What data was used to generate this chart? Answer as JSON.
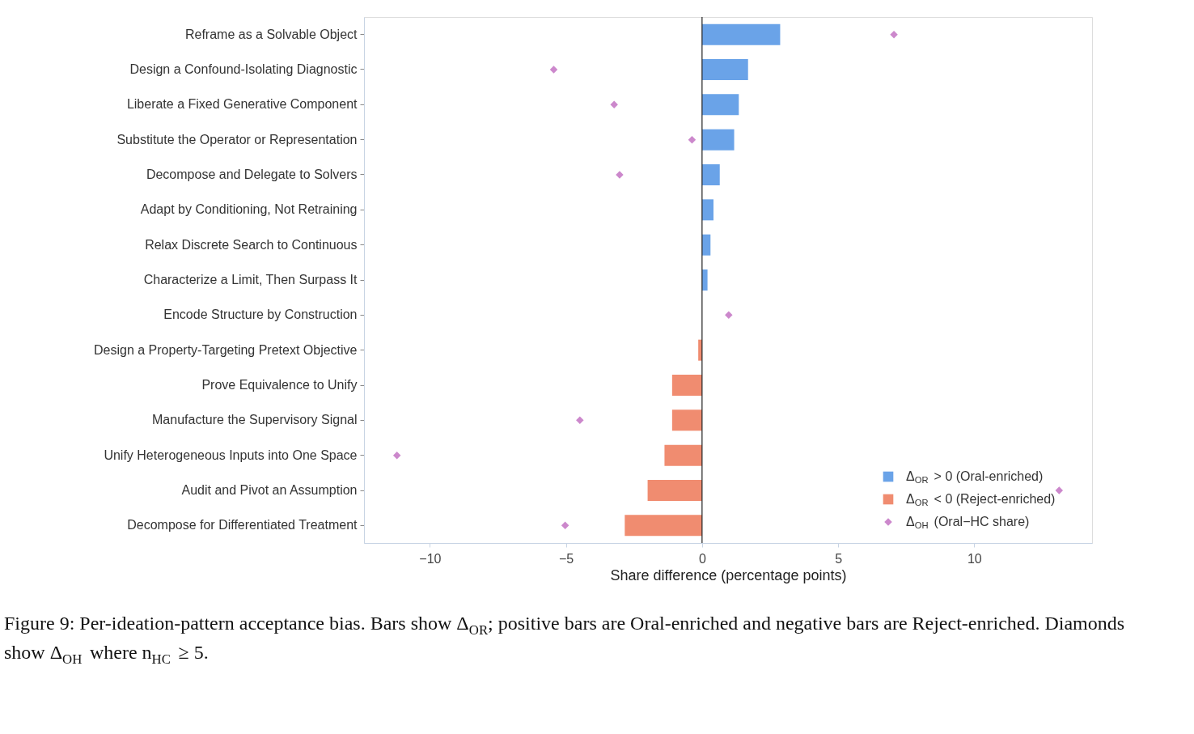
{
  "chart_data": {
    "type": "bar",
    "orientation": "horizontal",
    "categories": [
      "Reframe as a Solvable Object",
      "Design a Confound-Isolating Diagnostic",
      "Liberate a Fixed Generative Component",
      "Substitute the Operator or Representation",
      "Decompose and Delegate to Solvers",
      "Adapt by Conditioning, Not Retraining",
      "Relax Discrete Search to Continuous",
      "Characterize a Limit, Then Surpass It",
      "Encode Structure by Construction",
      "Design a Property-Targeting Pretext Objective",
      "Prove Equivalence to Unify",
      "Manufacture the Supervisory Signal",
      "Unify Heterogeneous Inputs into One Space",
      "Audit and Pivot an Assumption",
      "Decompose for Differentiated Treatment"
    ],
    "series": [
      {
        "name": "Δ$_{OR}$ > 0 (Oral-enriched)",
        "color": "#6aa3e8",
        "values": [
          2.87,
          1.69,
          1.35,
          1.18,
          0.65,
          0.42,
          0.31,
          0.2,
          null,
          null,
          null,
          null,
          null,
          null,
          null
        ]
      },
      {
        "name": "Δ$_{OR}$ < 0 (Reject-enriched)",
        "color": "#f08c70",
        "values": [
          null,
          null,
          null,
          null,
          null,
          null,
          null,
          null,
          null,
          -0.14,
          -1.1,
          -1.1,
          -1.38,
          -2.0,
          -2.84
        ]
      },
      {
        "name": "Δ$_{OH}$ (Oral−HC share)",
        "type": "scatter",
        "marker": "diamond",
        "color": "#cc88cc",
        "values": [
          7.05,
          -5.45,
          -3.23,
          -0.37,
          -3.03,
          null,
          null,
          null,
          0.98,
          null,
          null,
          -4.49,
          -11.21,
          13.12,
          -5.03
        ]
      }
    ],
    "xlabel": "Share difference (percentage points)",
    "xlim": [
      -12.42,
      14.33
    ],
    "xticks": [
      {
        "value": -10,
        "label": "−10"
      },
      {
        "value": -5,
        "label": "−5"
      },
      0,
      5,
      10
    ],
    "ref_lines": [
      {
        "axis": "x",
        "value": 0,
        "color": "#222222"
      }
    ],
    "grid": false,
    "legend": "bottom right",
    "annotations": [
      "Figure 9: Per-ideation-pattern acceptance bias. Bars show Δ$_{OR}$; positive bars are Oral-enriched and negative bars are Reject-enriched. Diamonds show Δ$_{OH}$ where n$_{HC}$ ≥ 5."
    ]
  }
}
